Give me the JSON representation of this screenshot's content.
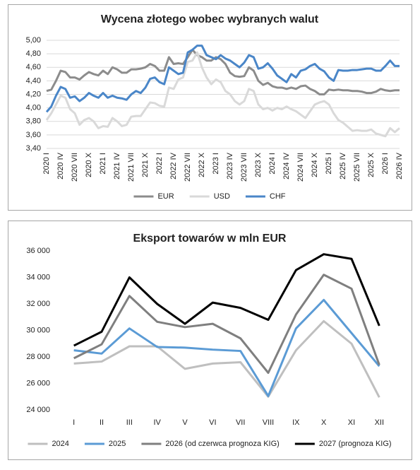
{
  "chart_data": [
    {
      "type": "line",
      "title": "Wycena złotego wobec wybranych walut",
      "categories": [
        "2020 I",
        null,
        null,
        "2020 IV",
        null,
        null,
        "2020 VII",
        null,
        null,
        "2020 X",
        null,
        null,
        "2021 I",
        null,
        null,
        "2021 IV",
        null,
        null,
        "2021 VII",
        null,
        null,
        "2021 X",
        null,
        null,
        "2022 I",
        null,
        null,
        "2022 IV",
        null,
        null,
        "2022 VII",
        null,
        null,
        "2022 X",
        null,
        null,
        "2023 I",
        null,
        null,
        "2023 IV",
        null,
        null,
        "2023 VII",
        null,
        null,
        "2023 X",
        null,
        null,
        "2024 I",
        null,
        null,
        "2024 IV",
        null,
        null,
        "2024 VII",
        null,
        null,
        "2024 X",
        null,
        null,
        "2025 I",
        null,
        null,
        "2025 IV",
        null,
        null,
        "2025 VII",
        null,
        null,
        "2025 X",
        null,
        null,
        "2026 I",
        null,
        null,
        "2026 IV"
      ],
      "series": [
        {
          "name": "EUR",
          "color": "#8c8c8c",
          "values": [
            4.25,
            4.27,
            4.4,
            4.55,
            4.53,
            4.45,
            4.45,
            4.42,
            4.48,
            4.53,
            4.5,
            4.48,
            4.55,
            4.5,
            4.6,
            4.57,
            4.52,
            4.52,
            4.57,
            4.57,
            4.58,
            4.6,
            4.65,
            4.62,
            4.55,
            4.55,
            4.75,
            4.65,
            4.66,
            4.65,
            4.75,
            4.86,
            4.78,
            4.75,
            4.7,
            4.7,
            4.75,
            4.72,
            4.65,
            4.52,
            4.47,
            4.46,
            4.47,
            4.6,
            4.55,
            4.4,
            4.34,
            4.37,
            4.32,
            4.3,
            4.3,
            4.28,
            4.3,
            4.28,
            4.32,
            4.33,
            4.28,
            4.25,
            4.2,
            4.2,
            4.27,
            4.26,
            4.27,
            4.26,
            4.26,
            4.25,
            4.25,
            4.24,
            4.22,
            4.22,
            4.24,
            4.28,
            4.26,
            4.25,
            4.26,
            4.26
          ]
        },
        {
          "name": "USD",
          "color": "#d9d9d9",
          "values": [
            3.82,
            3.92,
            4.05,
            4.18,
            4.15,
            3.98,
            3.92,
            3.75,
            3.82,
            3.85,
            3.8,
            3.7,
            3.73,
            3.72,
            3.85,
            3.8,
            3.73,
            3.75,
            3.87,
            3.88,
            3.88,
            3.98,
            4.08,
            4.07,
            4.03,
            4.02,
            4.3,
            4.28,
            4.42,
            4.45,
            4.68,
            4.7,
            4.82,
            4.6,
            4.45,
            4.35,
            4.42,
            4.38,
            4.25,
            4.2,
            4.1,
            4.05,
            4.1,
            4.28,
            4.25,
            4.05,
            3.98,
            4.0,
            3.96,
            4.0,
            3.98,
            4.02,
            3.98,
            3.95,
            3.9,
            3.85,
            3.95,
            4.05,
            4.08,
            4.1,
            4.05,
            3.92,
            3.82,
            3.78,
            3.72,
            3.66,
            3.67,
            3.66,
            3.66,
            3.68,
            3.62,
            3.6,
            3.58,
            3.7,
            3.64,
            3.7
          ]
        },
        {
          "name": "CHF",
          "color": "#4a86c8",
          "values": [
            3.94,
            4.02,
            4.18,
            4.31,
            4.28,
            4.15,
            4.17,
            4.1,
            4.15,
            4.22,
            4.18,
            4.15,
            4.22,
            4.15,
            4.18,
            4.15,
            4.14,
            4.12,
            4.2,
            4.25,
            4.22,
            4.3,
            4.43,
            4.45,
            4.38,
            4.35,
            4.6,
            4.55,
            4.5,
            4.52,
            4.82,
            4.86,
            4.92,
            4.92,
            4.78,
            4.75,
            4.72,
            4.78,
            4.73,
            4.7,
            4.65,
            4.6,
            4.67,
            4.78,
            4.75,
            4.58,
            4.6,
            4.66,
            4.58,
            4.48,
            4.43,
            4.38,
            4.5,
            4.45,
            4.55,
            4.57,
            4.62,
            4.65,
            4.58,
            4.54,
            4.45,
            4.4,
            4.56,
            4.55,
            4.55,
            4.56,
            4.56,
            4.57,
            4.58,
            4.58,
            4.55,
            4.55,
            4.62,
            4.7,
            4.62,
            4.62
          ]
        }
      ],
      "ylim": [
        3.4,
        5.0
      ],
      "yticks": [
        {
          "value": 3.4,
          "label": "3,40"
        },
        {
          "value": 3.6,
          "label": "3,60"
        },
        {
          "value": 3.8,
          "label": "3,80"
        },
        {
          "value": 4.0,
          "label": "4,00"
        },
        {
          "value": 4.2,
          "label": "4,20"
        },
        {
          "value": 4.4,
          "label": "4,40"
        },
        {
          "value": 4.6,
          "label": "4,60"
        },
        {
          "value": 4.8,
          "label": "4,80"
        },
        {
          "value": 5.0,
          "label": "5,00"
        }
      ],
      "grid": true,
      "legend": "bottom"
    },
    {
      "type": "line",
      "title": "Eksport towarów w mln EUR",
      "categories": [
        "I",
        "II",
        "III",
        "IV",
        "V",
        "VI",
        "VII",
        "VIII",
        "IX",
        "X",
        "XI",
        "XII"
      ],
      "series": [
        {
          "name": "2024",
          "color": "#bfbfbf",
          "values": [
            27500,
            27650,
            28800,
            28800,
            27100,
            27500,
            27600,
            25000,
            28500,
            30700,
            29000,
            24950
          ]
        },
        {
          "name": "2025",
          "color": "#5b9bd5",
          "values": [
            28500,
            28250,
            30150,
            28750,
            28700,
            28550,
            28450,
            25050,
            30150,
            32300,
            29800,
            27300
          ]
        },
        {
          "name": "2026 (od czerwca prognoza KIG)",
          "color": "#7f7f7f",
          "values": [
            27900,
            28950,
            32600,
            30650,
            30250,
            30500,
            29400,
            26800,
            31200,
            34200,
            33150,
            27400
          ]
        },
        {
          "name": "2027 (prognoza KIG)",
          "color": "#000000",
          "values": [
            28850,
            29900,
            34000,
            32000,
            30500,
            32100,
            31700,
            30800,
            34550,
            35750,
            35400,
            30350
          ]
        }
      ],
      "ylim": [
        24000,
        36000
      ],
      "yticks": [
        {
          "value": 24000,
          "label": "24 000"
        },
        {
          "value": 26000,
          "label": "26 000"
        },
        {
          "value": 28000,
          "label": "28 000"
        },
        {
          "value": 30000,
          "label": "30 000"
        },
        {
          "value": 32000,
          "label": "32 000"
        },
        {
          "value": 34000,
          "label": "34 000"
        },
        {
          "value": 36000,
          "label": "36 000"
        }
      ],
      "grid": false,
      "legend": "bottom"
    }
  ]
}
